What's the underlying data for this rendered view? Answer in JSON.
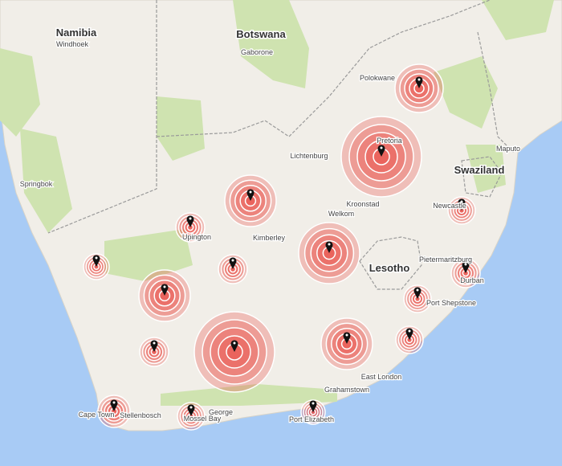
{
  "countries": [
    "Namibia",
    "Botswana",
    "Lesotho",
    "Swaziland"
  ],
  "places": [
    "Windhoek",
    "Gaborone",
    "Pretoria",
    "Kimberley",
    "Welkom",
    "Kroonstad",
    "Newcastle",
    "Durban",
    "Pietermaritzburg",
    "Port Shepstone",
    "East London",
    "Grahamstown",
    "Port Elizabeth",
    "George",
    "Mossel Bay",
    "Stellenbosch",
    "Cape Town",
    "Springbok",
    "Maputo",
    "Polokwane",
    "Upington",
    "Lichtenburg"
  ]
}
